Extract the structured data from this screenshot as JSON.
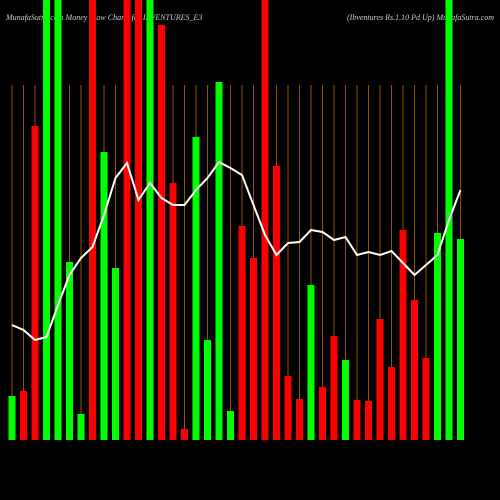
{
  "chart_data": {
    "type": "bar",
    "title": "MunafaSutra.com  Money Flow  Charts for IBVENTURES_E3",
    "subtitle": "(Ibventures Rs.1.10  Pd Up) MunafaSutra.com",
    "ylim": [
      0,
      440
    ],
    "bars": {
      "values": [
        44,
        49,
        314,
        440,
        440,
        178,
        26,
        440,
        288,
        172,
        440,
        440,
        440,
        415,
        257,
        11,
        303,
        100,
        358,
        29,
        214,
        182,
        440,
        274,
        64,
        41,
        155,
        53,
        104,
        80,
        40,
        39,
        121,
        73,
        210,
        140,
        82,
        207,
        440,
        201
      ],
      "colors": [
        "#00ff00",
        "#ff0000",
        "#ff0000",
        "#00ff00",
        "#00ff00",
        "#00ff00",
        "#00ff00",
        "#ff0000",
        "#00ff00",
        "#00ff00",
        "#ff0000",
        "#ff0000",
        "#00ff00",
        "#ff0000",
        "#ff0000",
        "#ff0000",
        "#00ff00",
        "#00ff00",
        "#00ff00",
        "#00ff00",
        "#ff0000",
        "#ff0000",
        "#ff0000",
        "#ff0000",
        "#ff0000",
        "#ff0000",
        "#00ff00",
        "#ff0000",
        "#ff0000",
        "#00ff00",
        "#ff0000",
        "#ff0000",
        "#ff0000",
        "#ff0000",
        "#ff0000",
        "#ff0000",
        "#ff0000",
        "#00ff00",
        "#00ff00",
        "#00ff00"
      ]
    },
    "line": {
      "color": "#ffffff",
      "values": [
        115,
        110,
        100,
        103,
        135,
        165,
        182,
        193,
        225,
        262,
        277,
        240,
        257,
        242,
        235,
        235,
        250,
        262,
        278,
        272,
        265,
        235,
        205,
        185,
        197,
        198,
        210,
        208,
        200,
        203,
        185,
        188,
        185,
        189,
        177,
        165,
        175,
        185,
        220,
        250
      ]
    }
  }
}
